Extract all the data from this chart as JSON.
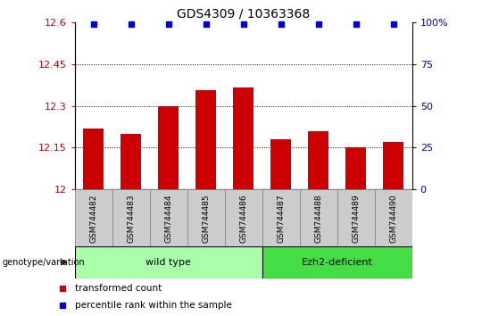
{
  "title": "GDS4309 / 10363368",
  "samples": [
    "GSM744482",
    "GSM744483",
    "GSM744484",
    "GSM744485",
    "GSM744486",
    "GSM744487",
    "GSM744488",
    "GSM744489",
    "GSM744490"
  ],
  "bar_values": [
    12.22,
    12.2,
    12.3,
    12.355,
    12.365,
    12.18,
    12.21,
    12.15,
    12.17
  ],
  "percentile_values": [
    99,
    99,
    99,
    99,
    99,
    99,
    99,
    99,
    99
  ],
  "ylim_left": [
    12.0,
    12.6
  ],
  "ylim_right": [
    0,
    100
  ],
  "yticks_left": [
    12.0,
    12.15,
    12.3,
    12.45,
    12.6
  ],
  "yticks_right": [
    0,
    25,
    50,
    75,
    100
  ],
  "ytick_labels_left": [
    "12",
    "12.15",
    "12.3",
    "12.45",
    "12.6"
  ],
  "ytick_labels_right": [
    "0",
    "25",
    "50",
    "75",
    "100%"
  ],
  "hlines": [
    12.15,
    12.3,
    12.45
  ],
  "bar_color": "#cc0000",
  "percentile_color": "#0000cc",
  "bar_width": 0.55,
  "groups": [
    {
      "label": "wild type",
      "start": 0,
      "end": 4,
      "color": "#aaffaa"
    },
    {
      "label": "Ezh2-deficient",
      "start": 5,
      "end": 8,
      "color": "#44dd44"
    }
  ],
  "legend_items": [
    {
      "label": "transformed count",
      "color": "#cc0000"
    },
    {
      "label": "percentile rank within the sample",
      "color": "#0000cc"
    }
  ],
  "genotype_label": "genotype/variation",
  "bg_color": "#ffffff",
  "plot_bg_color": "#ffffff",
  "tick_color_left": "#cc0000",
  "tick_color_right": "#0000cc",
  "title_fontsize": 10,
  "tick_fontsize": 8,
  "sample_box_color": "#cccccc",
  "sample_box_edge_color": "#888888"
}
